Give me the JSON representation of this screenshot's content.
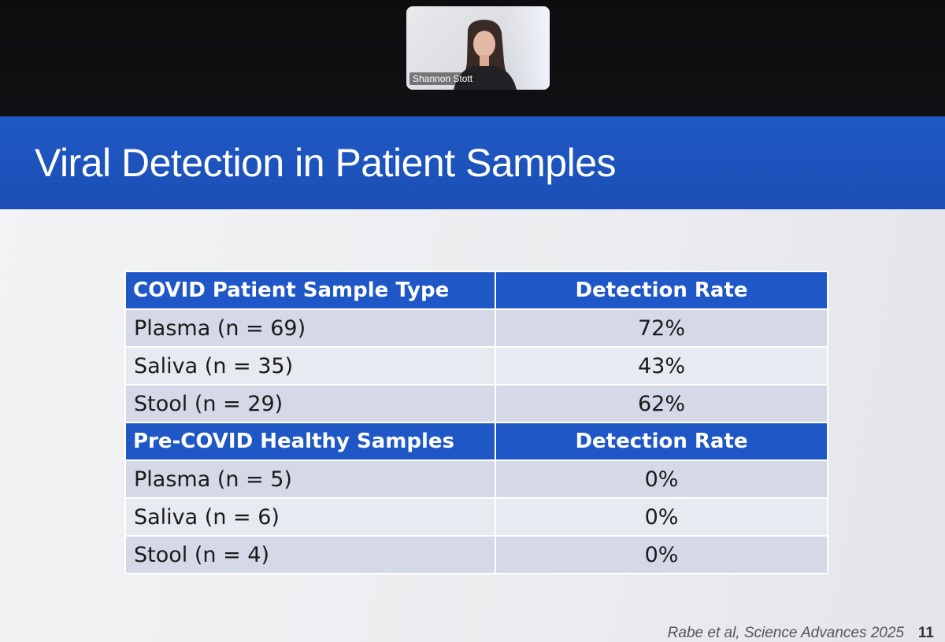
{
  "participant": {
    "name": "Shannon Stott"
  },
  "slide": {
    "title": "Viral Detection in Patient Samples",
    "citation": "Rabe et al, Science Advances 2025",
    "page_number": "11"
  },
  "table": {
    "sections": [
      {
        "header": [
          "COVID Patient Sample Type",
          "Detection Rate"
        ],
        "rows": [
          [
            "Plasma (n = 69)",
            "72%"
          ],
          [
            "Saliva (n = 35)",
            "43%"
          ],
          [
            "Stool (n = 29)",
            "62%"
          ]
        ]
      },
      {
        "header": [
          "Pre-COVID Healthy Samples",
          "Detection Rate"
        ],
        "rows": [
          [
            "Plasma (n = 5)",
            "0%"
          ],
          [
            "Saliva (n = 6)",
            "0%"
          ],
          [
            "Stool (n = 4)",
            "0%"
          ]
        ]
      }
    ]
  },
  "colors": {
    "title_bar": "#1f58c4",
    "table_header": "#1f57c6",
    "row_dark": "#d5d8e6",
    "row_light": "#e8eaf2"
  }
}
